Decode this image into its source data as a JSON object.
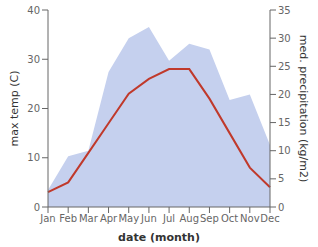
{
  "chart_data": {
    "type": "line",
    "categories": [
      "Jan",
      "Feb",
      "Mar",
      "Apr",
      "May",
      "Jun",
      "Jul",
      "Aug",
      "Sep",
      "Oct",
      "Nov",
      "Dec"
    ],
    "xlabel": "date (month)",
    "ylabel": "max temp (C)",
    "y2label": "med. precipitation (kg/m2)",
    "series": [
      {
        "type": "area",
        "axis": "y2",
        "color": "#c5d0ee",
        "values": [
          3,
          9,
          10,
          24,
          30,
          32,
          26,
          29,
          28,
          19,
          20,
          11
        ]
      },
      {
        "type": "line",
        "color": "#c0392b",
        "values": [
          3,
          5,
          11,
          17,
          23,
          26,
          28,
          28,
          22,
          15,
          8,
          4
        ]
      }
    ],
    "ylim": [
      0,
      40
    ],
    "yticks": [
      0,
      10,
      20,
      30,
      40
    ],
    "y2lim": [
      0,
      35
    ],
    "y2ticks": [
      0,
      5,
      10,
      15,
      20,
      25,
      30,
      35
    ],
    "grid": false
  }
}
